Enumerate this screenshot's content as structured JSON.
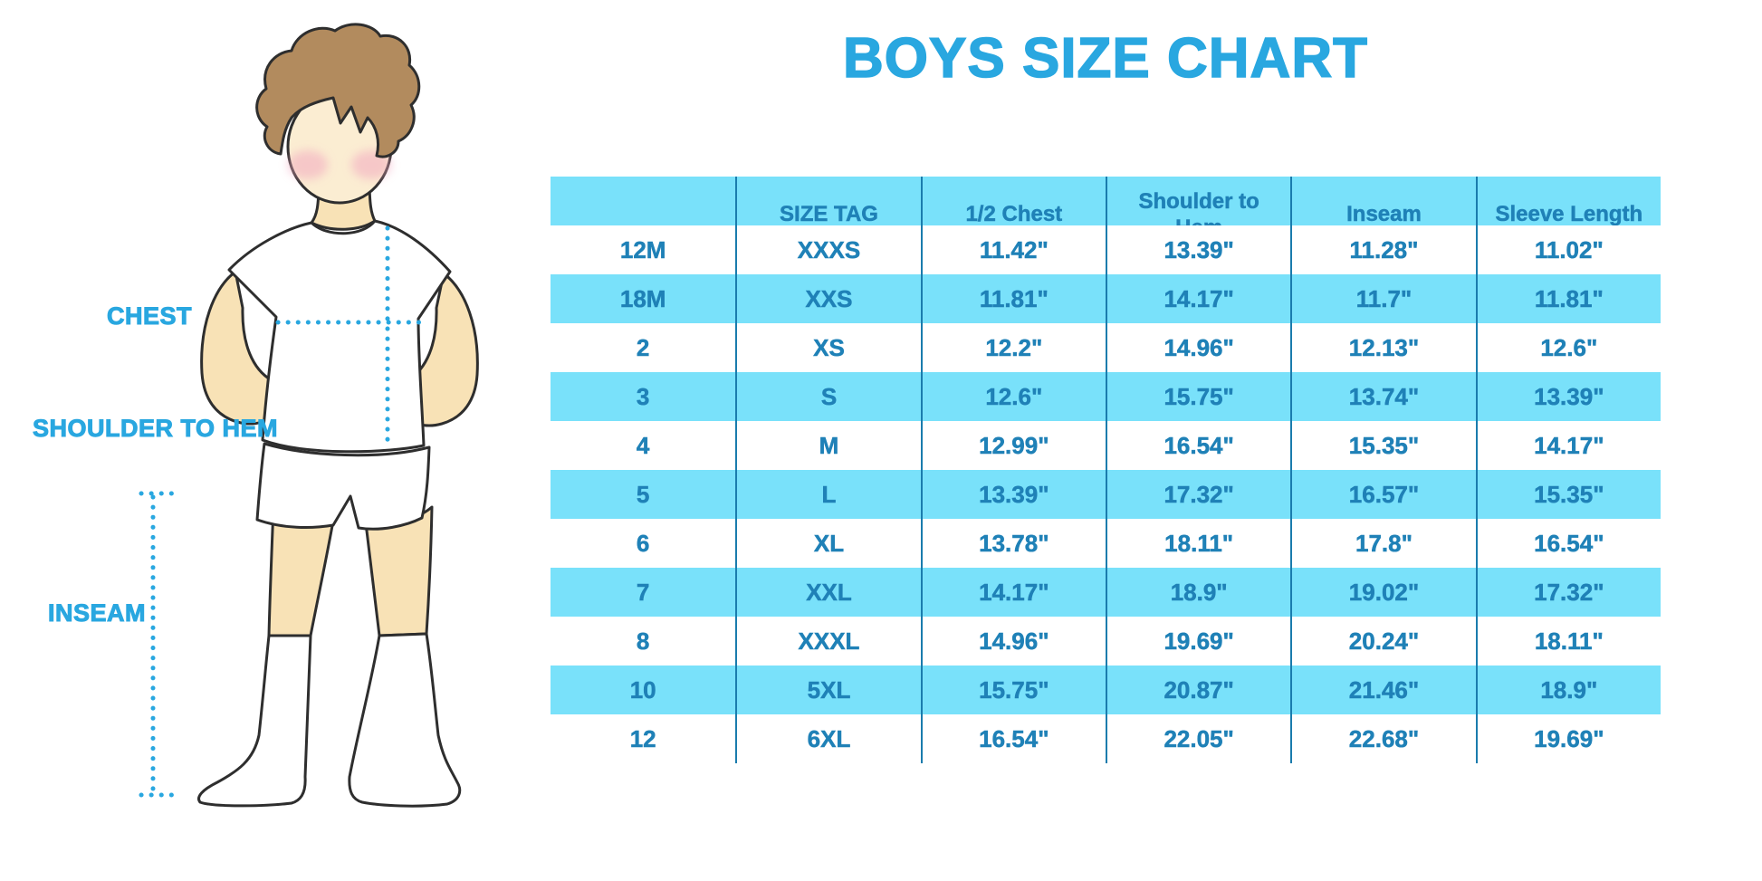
{
  "page": {
    "title": "BOYS SIZE CHART",
    "background": "#FFFFFF"
  },
  "colors": {
    "accent_blue": "#29A7E0",
    "table_fill_blue": "#79E1FA",
    "table_text_blue": "#1F81B7",
    "table_divider_blue": "#1A7CAD",
    "outline_dark": "#2E2E2E",
    "skin": "#F8E2B6",
    "face_skin": "#FBEDD2",
    "hair_brown": "#B28B5E",
    "blush_pink": "#F2A9C0",
    "garment_white": "#FFFFFF"
  },
  "measurement_diagram": {
    "labels": {
      "chest": "CHEST",
      "shoulder_to_hem": "SHOULDER TO HEM",
      "inseam": "INSEAM"
    }
  },
  "chart_data": {
    "type": "table",
    "title": "BOYS SIZE CHART",
    "columns": [
      "",
      "SIZE TAG",
      "1/2 Chest",
      "Shoulder to Hem",
      "Inseam",
      "Sleeve Length"
    ],
    "rows": [
      [
        "12M",
        "XXXS",
        "11.42\"",
        "13.39\"",
        "11.28\"",
        "11.02\""
      ],
      [
        "18M",
        "XXS",
        "11.81\"",
        "14.17\"",
        "11.7\"",
        "11.81\""
      ],
      [
        "2",
        "XS",
        "12.2\"",
        "14.96\"",
        "12.13\"",
        "12.6\""
      ],
      [
        "3",
        "S",
        "12.6\"",
        "15.75\"",
        "13.74\"",
        "13.39\""
      ],
      [
        "4",
        "M",
        "12.99\"",
        "16.54\"",
        "15.35\"",
        "14.17\""
      ],
      [
        "5",
        "L",
        "13.39\"",
        "17.32\"",
        "16.57\"",
        "15.35\""
      ],
      [
        "6",
        "XL",
        "13.78\"",
        "18.11\"",
        "17.8\"",
        "16.54\""
      ],
      [
        "7",
        "XXL",
        "14.17\"",
        "18.9\"",
        "19.02\"",
        "17.32\""
      ],
      [
        "8",
        "XXXL",
        "14.96\"",
        "19.69\"",
        "20.24\"",
        "18.11\""
      ],
      [
        "10",
        "5XL",
        "15.75\"",
        "20.87\"",
        "21.46\"",
        "18.9\""
      ],
      [
        "12",
        "6XL",
        "16.54\"",
        "22.05\"",
        "22.68\"",
        "19.69\""
      ]
    ],
    "striping": "alternate rows light blue starting at second data row",
    "grid": "vertical dividers only, no outer border"
  }
}
